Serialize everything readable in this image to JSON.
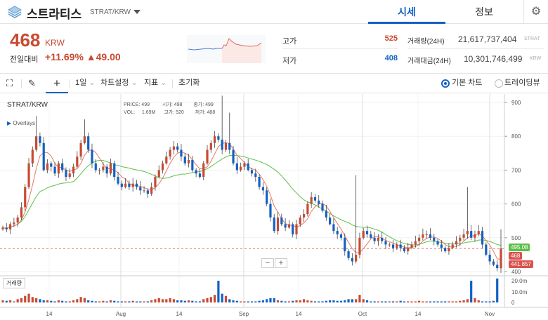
{
  "header": {
    "coin_name": "스트라티스",
    "pair": "STRAT/KRW",
    "tabs": [
      {
        "label": "시세"
      },
      {
        "label": "정보"
      }
    ]
  },
  "ticker": {
    "price": "468",
    "unit": "KRW",
    "change_label": "전일대비",
    "change_pct": "+11.69%",
    "change_abs": "▲49.00",
    "high_label": "고가",
    "high": "525",
    "low_label": "저가",
    "low": "408",
    "vol_label": "거래량(24H)",
    "vol": "21,617,737,404",
    "vol_unit": "STRAT",
    "amt_label": "거래대금(24H)",
    "amt": "10,301,746,499",
    "amt_unit": "KRW"
  },
  "toolbar": {
    "interval": "1일",
    "chart_settings": "차트설정",
    "indicators": "지표",
    "reset": "초기화",
    "basic_chart": "기본 차트",
    "tradingview": "트레이딩뷰"
  },
  "overlay": {
    "symbol": "STRAT/KRW",
    "overlays": "Overlays",
    "price_label": "PRICE:",
    "price": "499",
    "vol_label": "VOL:",
    "vol": "1.69M",
    "open_label": "시가:",
    "open": "498",
    "high_label": "고가:",
    "high": "520",
    "close_label": "종가:",
    "close": "499",
    "low_label": "저가:",
    "low": "488",
    "volume_label": "거래량"
  },
  "colors": {
    "up": "#c84a31",
    "down": "#1261c4",
    "ma_long": "#5cc04a",
    "ma_short": "#e57a6a"
  },
  "chart_data": {
    "type": "candlestick",
    "x_ticks": [
      "14",
      "Aug",
      "14",
      "Sep",
      "14",
      "Oct",
      "14",
      "Nov"
    ],
    "y_ticks": [
      "900",
      "800",
      "700",
      "600",
      "500",
      "400"
    ],
    "ylim": [
      400,
      900
    ],
    "vol_ticks": [
      "20.0m",
      "10.0m",
      "0"
    ],
    "price_tags": {
      "ma_long": "495.08",
      "last": "468",
      "ma_short": "441.857"
    },
    "close": [
      530,
      525,
      540,
      545,
      560,
      590,
      650,
      720,
      760,
      800,
      780,
      700,
      720,
      710,
      690,
      720,
      700,
      680,
      690,
      710,
      740,
      780,
      800,
      760,
      720,
      700,
      700,
      710,
      690,
      720,
      680,
      660,
      650,
      660,
      650,
      660,
      650,
      640,
      640,
      630,
      650,
      680,
      700,
      720,
      740,
      760,
      770,
      760,
      740,
      720,
      730,
      700,
      690,
      680,
      720,
      760,
      780,
      800,
      790,
      760,
      780,
      760,
      720,
      700,
      710,
      720,
      700,
      690,
      680,
      650,
      640,
      600,
      560,
      520,
      560,
      540,
      530,
      540,
      510,
      540,
      560,
      570,
      600,
      620,
      610,
      600,
      580,
      560,
      540,
      520,
      510,
      500,
      460,
      440,
      430,
      450,
      500,
      520,
      510,
      500,
      490,
      500,
      490,
      480,
      480,
      470,
      480,
      470,
      460,
      470,
      480,
      490,
      500,
      510,
      510,
      500,
      490,
      480,
      470,
      460,
      470,
      480,
      490,
      500,
      510,
      520,
      500,
      510,
      520,
      480,
      450,
      430,
      420,
      410,
      468
    ],
    "notable_highs": {
      "9": 860,
      "22": 850,
      "59": 920,
      "61": 870,
      "95": 685,
      "125": 650,
      "134": 525
    },
    "volume_m": [
      2,
      1.5,
      2,
      1,
      3,
      4,
      6,
      8,
      5,
      4,
      3,
      2,
      2,
      1.5,
      1,
      2,
      1.5,
      1,
      1,
      2,
      3,
      5,
      4,
      2,
      1.5,
      1,
      1,
      1.5,
      1,
      2,
      1.5,
      1,
      1,
      1,
      1,
      1.5,
      1,
      1,
      1,
      1,
      2,
      3,
      4,
      3,
      3,
      4,
      3,
      2,
      2,
      1.5,
      2,
      1.5,
      1,
      1,
      3,
      4,
      5,
      7,
      20,
      8,
      6,
      3,
      2,
      1.5,
      1,
      1,
      1,
      1,
      1,
      1.5,
      2,
      3,
      4,
      4,
      2,
      1.5,
      1,
      1,
      1.5,
      2,
      2,
      3,
      2,
      1.5,
      1,
      1,
      1,
      1.5,
      2,
      2,
      1.5,
      1.5,
      2,
      3,
      3,
      3,
      7,
      3,
      2,
      1,
      1,
      1,
      1,
      1,
      1,
      1,
      1,
      1.5,
      1,
      1,
      1,
      1,
      1.5,
      1,
      1,
      1,
      1,
      1,
      1,
      1,
      1,
      1,
      1,
      1.5,
      2,
      3,
      20,
      4,
      2,
      1,
      1,
      1,
      1.5,
      22
    ]
  }
}
